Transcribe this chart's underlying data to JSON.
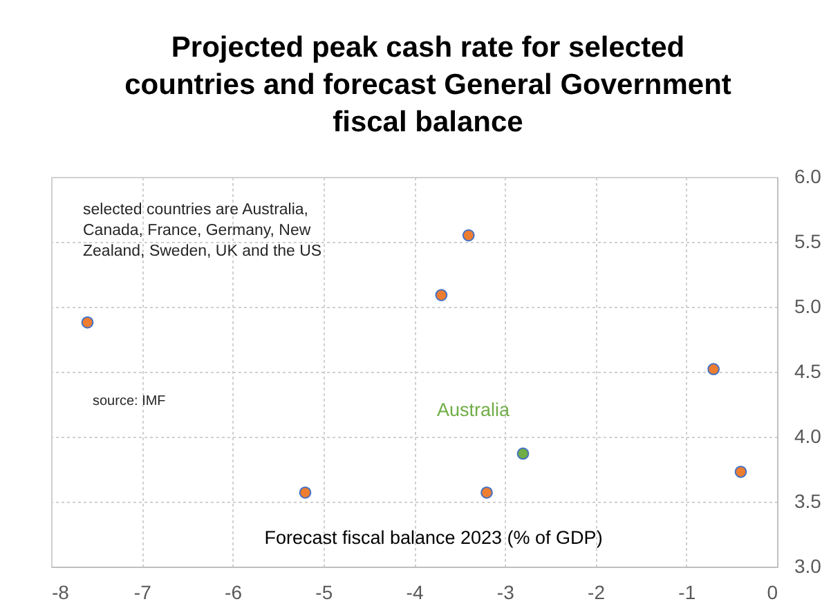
{
  "chart_data": {
    "type": "scatter",
    "title": "Projected peak cash rate for selected countries and forecast General Government fiscal balance",
    "xlabel": "Forecast fiscal balance 2023 (% of GDP)",
    "annotations": [
      "selected countries are Australia, Canada, France, Germany, New Zealand, Sweden, UK and the US",
      "source: IMF"
    ],
    "series": [
      {
        "color": "#ed7d31",
        "x": [
          -7.6,
          -3.4,
          -3.7,
          -0.7,
          -5.2,
          -3.2,
          -0.4
        ],
        "values": [
          4.88,
          5.55,
          5.09,
          4.52,
          3.57,
          3.57,
          3.73
        ]
      },
      {
        "name": "Australia",
        "color": "#70ad47",
        "x": [
          -2.8
        ],
        "values": [
          3.87
        ]
      }
    ],
    "xlim": [
      -8,
      0
    ],
    "xticks": [
      -8,
      -7,
      -6,
      -5,
      -4,
      -3,
      -2,
      -1,
      0
    ],
    "ylim": [
      3,
      6
    ],
    "yticks": [
      {
        "value": 3,
        "label": "3.0"
      },
      3.5,
      {
        "value": 4,
        "label": "4.0"
      },
      4.5,
      {
        "value": 5,
        "label": "5.0"
      },
      5.5,
      {
        "value": 6,
        "label": "6.0"
      }
    ],
    "grid": true,
    "marker": "circle"
  }
}
